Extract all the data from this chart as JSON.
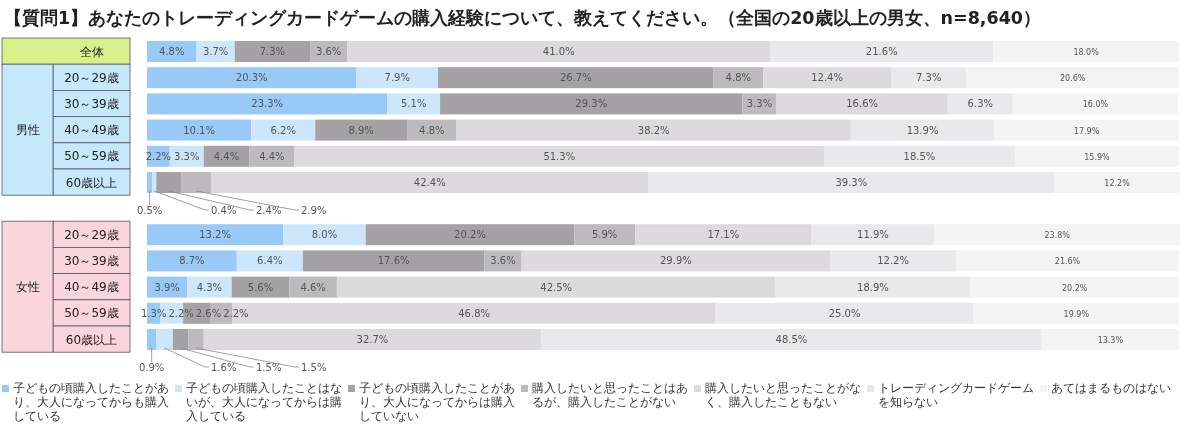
{
  "chart_data": {
    "type": "bar",
    "orientation": "horizontal",
    "stacked": true,
    "title": "【質問1】あなたのトレーディングカードゲームの購入経験について、教えてください。（全国の20歳以上の男女、n=8,640）",
    "categories": [
      "全体",
      "20～29歳",
      "30～39歳",
      "40～49歳",
      "50～59歳",
      "60歳以上",
      "20～29歳",
      "30～39歳",
      "40～49歳",
      "50～59歳",
      "60歳以上"
    ],
    "annotations": [
      "男性",
      "女性"
    ],
    "legend": "bottom",
    "series": [
      {
        "name": "子どもの頃購入したことがあり、大人になってからも購入している",
        "color": "#99c9f7",
        "values": [
          4.8,
          20.3,
          23.3,
          10.1,
          2.2,
          0.5,
          13.2,
          8.7,
          3.9,
          1.3,
          0.9
        ],
        "value_labels": [
          "4.8%",
          "20.3%",
          "23.3%",
          "10.1%",
          "2.2%",
          "0.5%",
          "13.2%",
          "8.7%",
          "3.9%",
          "1.3%",
          "0.9%"
        ]
      },
      {
        "name": "子どもの頃購入したことはないが、大人になってからは購入している",
        "color": "#cce6fb",
        "values": [
          3.7,
          7.9,
          5.1,
          6.2,
          3.3,
          0.4,
          8.0,
          6.4,
          4.3,
          2.2,
          1.6
        ],
        "value_labels": [
          "3.7%",
          "7.9%",
          "5.1%",
          "6.2%",
          "3.3%",
          "0.4%",
          "8.0%",
          "6.4%",
          "4.3%",
          "2.2%",
          "1.6%"
        ]
      },
      {
        "name": "子どもの頃購入したことがあり、大人になってからは購入していない",
        "color": "#a4a2a5",
        "values": [
          7.3,
          26.7,
          29.3,
          8.9,
          4.4,
          2.4,
          20.2,
          17.6,
          5.6,
          2.6,
          1.5
        ],
        "value_labels": [
          "7.3%",
          "26.7%",
          "29.3%",
          "8.9%",
          "4.4%",
          "2.4%",
          "20.2%",
          "17.6%",
          "5.6%",
          "2.6%",
          "1.5%"
        ]
      },
      {
        "name": "購入したいと思ったことはあるが、購入したことがない",
        "color": "#bcbabd",
        "values": [
          3.6,
          4.8,
          3.3,
          4.8,
          4.4,
          2.9,
          5.9,
          3.6,
          4.6,
          2.2,
          1.5
        ],
        "value_labels": [
          "3.6%",
          "4.8%",
          "3.3%",
          "4.8%",
          "4.4%",
          "2.9%",
          "5.9%",
          "3.6%",
          "4.6%",
          "2.2%",
          "1.5%"
        ]
      },
      {
        "name": "購入したいと思ったことがなく、購入したこともない",
        "color": "#dcdadd",
        "values": [
          41.0,
          12.4,
          16.6,
          38.2,
          51.3,
          42.4,
          17.1,
          29.9,
          42.5,
          46.8,
          32.7
        ],
        "value_labels": [
          "41.0%",
          "12.4%",
          "16.6%",
          "38.2%",
          "51.3%",
          "42.4%",
          "17.1%",
          "29.9%",
          "42.5%",
          "46.8%",
          "32.7%"
        ]
      },
      {
        "name": "トレーディングカードゲームを知らない",
        "color": "#e9e8ea",
        "values": [
          21.6,
          7.3,
          6.3,
          13.9,
          18.5,
          39.3,
          11.9,
          12.2,
          18.9,
          25.0,
          48.5
        ],
        "value_labels": [
          "21.6%",
          "7.3%",
          "6.3%",
          "13.9%",
          "18.5%",
          "39.3%",
          "11.9%",
          "12.2%",
          "18.9%",
          "25.0%",
          "48.5%"
        ]
      },
      {
        "name": "あてはまるものはない",
        "color": "#f4f4f5",
        "values": [
          18.0,
          20.6,
          16.0,
          17.9,
          15.9,
          12.2,
          23.8,
          21.6,
          20.2,
          19.9,
          13.3
        ],
        "value_labels": [
          "18.0%",
          "20.6%",
          "16.0%",
          "17.9%",
          "15.9%",
          "12.2%",
          "23.8%",
          "21.6%",
          "20.2%",
          "19.9%",
          "13.3%"
        ]
      }
    ]
  }
}
